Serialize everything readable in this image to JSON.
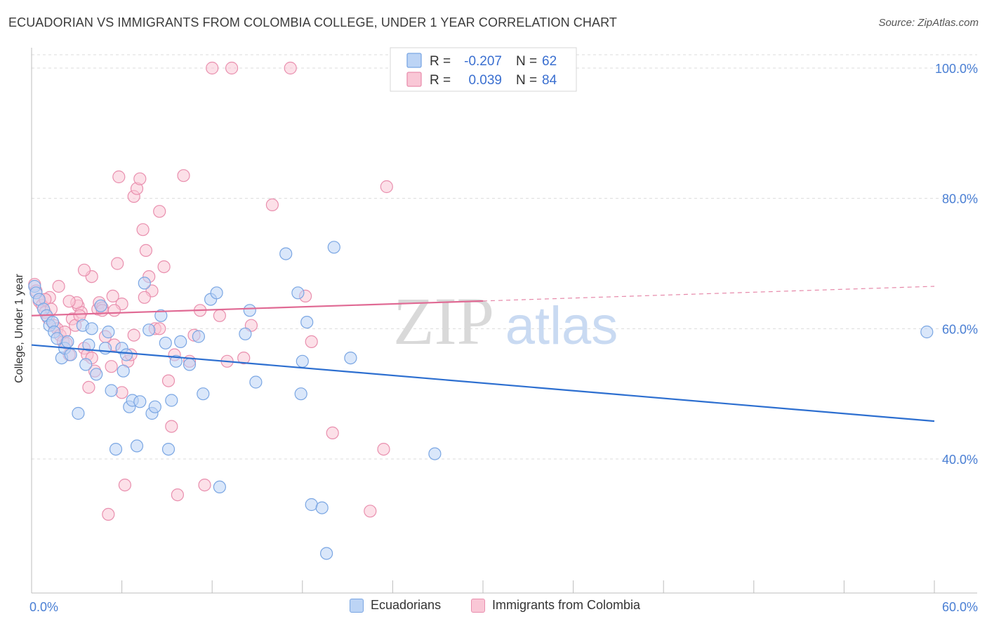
{
  "title": "ECUADORIAN VS IMMIGRANTS FROM COLOMBIA COLLEGE, UNDER 1 YEAR CORRELATION CHART",
  "source": "Source: ZipAtlas.com",
  "colors": {
    "blue_fill": "#bcd4f5",
    "blue_stroke": "#7aa6e3",
    "blue_line": "#2d6fd0",
    "pink_fill": "#f9c7d6",
    "pink_stroke": "#e98fae",
    "pink_line": "#e06a94",
    "tick_text": "#4a7fd4",
    "grid": "#dcdcdc"
  },
  "legend": {
    "rows": [
      {
        "r_label": "R =",
        "r_value": "-0.207",
        "n_label": "N =",
        "n_value": "62"
      },
      {
        "r_label": "R =",
        "r_value": "0.039",
        "n_label": "N =",
        "n_value": "84"
      }
    ]
  },
  "bottom_legend": [
    "Ecuadorians",
    "Immigrants from Colombia"
  ],
  "watermark": {
    "zip": "ZIP",
    "atlas": "atlas"
  },
  "chart_data": {
    "type": "scatter",
    "title": "ECUADORIAN VS IMMIGRANTS FROM COLOMBIA COLLEGE, UNDER 1 YEAR CORRELATION CHART",
    "xlabel": "",
    "ylabel": "College, Under 1 year",
    "xlim": [
      0,
      60
    ],
    "ylim": [
      20,
      104
    ],
    "x_tick_labels": [
      "0.0%",
      "60.0%"
    ],
    "y_ticks": [
      {
        "value": 40,
        "label": "40.0%"
      },
      {
        "value": 60,
        "label": "60.0%"
      },
      {
        "value": 80,
        "label": "80.0%"
      },
      {
        "value": 100,
        "label": "100.0%"
      }
    ],
    "grid": true,
    "legend_position": "top-center",
    "series": [
      {
        "name": "Ecuadorians",
        "r": -0.207,
        "n": 62,
        "trend": {
          "x0": 0,
          "y0": 57.5,
          "x1": 60,
          "y1": 45.8,
          "dashed_from": null
        },
        "points": [
          [
            0.2,
            66.5
          ],
          [
            0.3,
            65.5
          ],
          [
            0.5,
            64.5
          ],
          [
            0.8,
            63
          ],
          [
            1,
            62
          ],
          [
            1.2,
            60.5
          ],
          [
            1.4,
            61
          ],
          [
            1.5,
            59.5
          ],
          [
            1.7,
            58.5
          ],
          [
            2,
            55.5
          ],
          [
            2.2,
            57
          ],
          [
            2.4,
            58
          ],
          [
            2.6,
            56
          ],
          [
            3.1,
            47
          ],
          [
            3.4,
            60.5
          ],
          [
            3.6,
            54.5
          ],
          [
            3.8,
            57.5
          ],
          [
            4,
            60
          ],
          [
            4.3,
            53
          ],
          [
            4.6,
            63.5
          ],
          [
            4.9,
            57
          ],
          [
            5.1,
            59.5
          ],
          [
            5.3,
            50.5
          ],
          [
            5.6,
            41.5
          ],
          [
            6,
            57
          ],
          [
            6.1,
            53.5
          ],
          [
            6.3,
            56
          ],
          [
            6.5,
            48
          ],
          [
            6.7,
            49
          ],
          [
            7,
            42
          ],
          [
            7.2,
            48.8
          ],
          [
            7.5,
            67
          ],
          [
            7.8,
            59.8
          ],
          [
            8,
            47
          ],
          [
            8.2,
            48
          ],
          [
            8.6,
            62
          ],
          [
            8.9,
            57.8
          ],
          [
            9.1,
            41.5
          ],
          [
            9.3,
            49
          ],
          [
            9.6,
            55
          ],
          [
            9.9,
            58
          ],
          [
            10.5,
            54.5
          ],
          [
            11.1,
            58.8
          ],
          [
            11.4,
            50
          ],
          [
            11.9,
            64.5
          ],
          [
            12.3,
            65.5
          ],
          [
            12.5,
            35.7
          ],
          [
            14.5,
            62.8
          ],
          [
            14.9,
            51.8
          ],
          [
            16.9,
            71.5
          ],
          [
            17.7,
            65.5
          ],
          [
            17.9,
            50
          ],
          [
            18,
            55
          ],
          [
            18.3,
            61
          ],
          [
            18.6,
            33
          ],
          [
            19.3,
            32.5
          ],
          [
            19.6,
            25.5
          ],
          [
            20.1,
            72.5
          ],
          [
            21.2,
            55.5
          ],
          [
            26.8,
            40.8
          ],
          [
            59.5,
            59.5
          ],
          [
            14.2,
            59.2
          ]
        ]
      },
      {
        "name": "Immigrants from Colombia",
        "r": 0.039,
        "n": 84,
        "trend": {
          "x0": 0,
          "y0": 62,
          "x1": 60,
          "y1": 66.5,
          "dashed_from": 30
        },
        "points": [
          [
            0.2,
            66.8
          ],
          [
            0.3,
            65.8
          ],
          [
            0.5,
            64.2
          ],
          [
            0.7,
            63.6
          ],
          [
            0.9,
            62.5
          ],
          [
            1.1,
            61.6
          ],
          [
            1.3,
            63
          ],
          [
            1.5,
            60.5
          ],
          [
            1.7,
            60
          ],
          [
            1.9,
            59
          ],
          [
            2.1,
            58
          ],
          [
            2.3,
            57.8
          ],
          [
            2.5,
            56
          ],
          [
            2.7,
            61.5
          ],
          [
            2.9,
            60.5
          ],
          [
            3.1,
            63.5
          ],
          [
            3.3,
            62.5
          ],
          [
            3.5,
            57
          ],
          [
            3.7,
            56
          ],
          [
            3.8,
            51
          ],
          [
            4,
            55.5
          ],
          [
            4.2,
            53.5
          ],
          [
            4.4,
            63
          ],
          [
            4.5,
            64
          ],
          [
            4.7,
            63.2
          ],
          [
            4.9,
            58.8
          ],
          [
            5.1,
            31.5
          ],
          [
            5.3,
            54.2
          ],
          [
            5.5,
            57.5
          ],
          [
            5.7,
            70
          ],
          [
            5.8,
            83.3
          ],
          [
            6,
            50.2
          ],
          [
            6.2,
            36
          ],
          [
            6.4,
            55
          ],
          [
            6.6,
            56
          ],
          [
            6.8,
            80.3
          ],
          [
            7,
            81.5
          ],
          [
            7.2,
            83
          ],
          [
            7.4,
            75.2
          ],
          [
            7.6,
            72
          ],
          [
            7.8,
            68
          ],
          [
            8,
            65.8
          ],
          [
            8.2,
            60
          ],
          [
            8.5,
            78
          ],
          [
            8.8,
            69.5
          ],
          [
            9.1,
            52
          ],
          [
            9.3,
            45
          ],
          [
            9.7,
            34.5
          ],
          [
            10.1,
            83.5
          ],
          [
            10.5,
            55
          ],
          [
            10.8,
            59
          ],
          [
            11.2,
            62.8
          ],
          [
            12,
            100
          ],
          [
            13.3,
            100
          ],
          [
            14.1,
            55.5
          ],
          [
            14.6,
            60.5
          ],
          [
            16,
            79
          ],
          [
            17.2,
            100
          ],
          [
            18.2,
            65
          ],
          [
            18.6,
            58
          ],
          [
            20,
            44
          ],
          [
            22.5,
            32
          ],
          [
            23.4,
            41.5
          ],
          [
            23.6,
            81.8
          ],
          [
            3,
            64
          ],
          [
            1.2,
            64.8
          ],
          [
            2.5,
            64.2
          ],
          [
            4,
            68
          ],
          [
            5.4,
            65
          ],
          [
            7.5,
            64.8
          ],
          [
            0.9,
            64.5
          ],
          [
            1.8,
            66.5
          ],
          [
            3.5,
            69
          ],
          [
            6.8,
            59
          ],
          [
            8.5,
            60
          ],
          [
            11.5,
            36
          ],
          [
            13,
            55
          ],
          [
            4.7,
            62.8
          ],
          [
            2.2,
            59.5
          ],
          [
            6,
            63.8
          ],
          [
            9.5,
            56
          ],
          [
            12.5,
            62
          ],
          [
            5.5,
            62.8
          ],
          [
            3.2,
            62
          ]
        ]
      }
    ]
  }
}
